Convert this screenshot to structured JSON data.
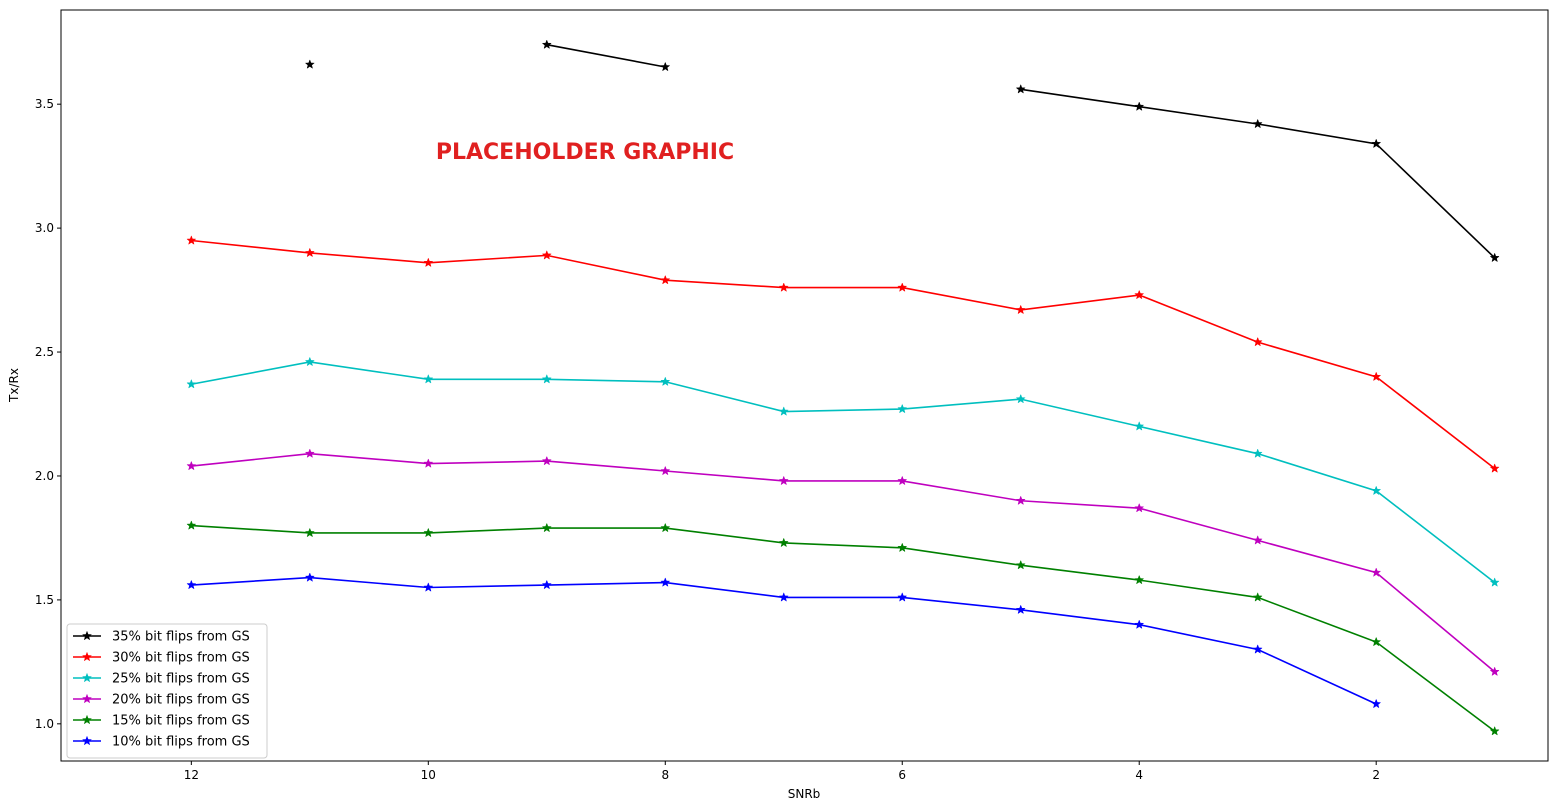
{
  "chart_data": {
    "type": "line",
    "xlabel": "SNRb",
    "ylabel": "Tx/Rx",
    "xlim": [
      13.1,
      0.55
    ],
    "ylim": [
      0.85,
      3.88
    ],
    "x_ticks": [
      12,
      10,
      8,
      6,
      4,
      2
    ],
    "y_ticks": [
      1.0,
      1.5,
      2.0,
      2.5,
      3.0,
      3.5
    ],
    "x_tick_labels": [
      "12",
      "10",
      "8",
      "6",
      "4",
      "2"
    ],
    "y_tick_labels": [
      "1.0",
      "1.5",
      "2.0",
      "2.5",
      "3.0",
      "3.5"
    ],
    "x": [
      12,
      11,
      10,
      9,
      8,
      7,
      6,
      5,
      4,
      3,
      2,
      1
    ],
    "legend_position": "lower-left",
    "grid": false,
    "watermark": "PLACEHOLDER GRAPHIC",
    "series": [
      {
        "name": "35% bit flips from GS",
        "color": "#000000",
        "values": [
          null,
          3.66,
          null,
          3.74,
          3.65,
          null,
          null,
          3.56,
          3.49,
          3.42,
          3.34,
          2.88
        ]
      },
      {
        "name": "30% bit flips from GS",
        "color": "#ff0000",
        "values": [
          2.95,
          2.9,
          2.86,
          2.89,
          2.79,
          2.76,
          2.76,
          2.67,
          2.73,
          2.54,
          2.4,
          2.03
        ]
      },
      {
        "name": "25% bit flips from GS",
        "color": "#00bfbf",
        "values": [
          2.37,
          2.46,
          2.39,
          2.39,
          2.38,
          2.26,
          2.27,
          2.31,
          2.2,
          2.09,
          1.94,
          1.57
        ]
      },
      {
        "name": "20% bit flips from GS",
        "color": "#bf00bf",
        "values": [
          2.04,
          2.09,
          2.05,
          2.06,
          2.02,
          1.98,
          1.98,
          1.9,
          1.87,
          1.74,
          1.61,
          1.21
        ]
      },
      {
        "name": "15% bit flips from GS",
        "color": "#008000",
        "values": [
          1.8,
          1.77,
          1.77,
          1.79,
          1.79,
          1.73,
          1.71,
          1.64,
          1.58,
          1.51,
          1.33,
          0.97
        ]
      },
      {
        "name": "10% bit flips from GS",
        "color": "#0000ff",
        "values": [
          1.56,
          1.59,
          1.55,
          1.56,
          1.57,
          1.51,
          1.51,
          1.46,
          1.4,
          1.3,
          1.08,
          null
        ]
      }
    ]
  }
}
